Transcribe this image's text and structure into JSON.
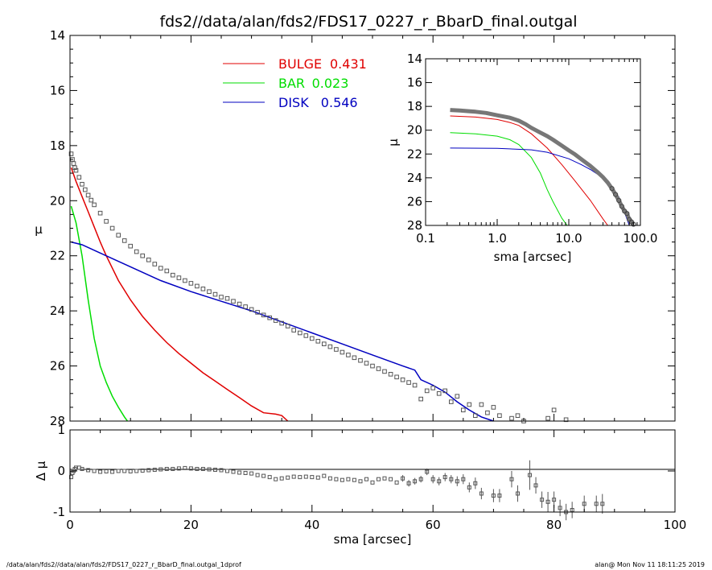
{
  "title": "fds2//data/alan/fds2/FDS17_0227_r_BbarD_final.outgal",
  "footer_left": "/data/alan/fds2//data/alan/fds2/FDS17_0227_r_BbarD_final.outgal_1dprof",
  "footer_right": "alan@  Mon Nov 11 18:11:25 2019",
  "colors": {
    "bulge": "#e00000",
    "bar": "#00dd00",
    "disk": "#0000c0",
    "data": "#555555",
    "axis": "#000000"
  },
  "chart_data": [
    {
      "type": "line",
      "panel": "main",
      "xlim": [
        0,
        100
      ],
      "ylim": [
        28,
        14
      ],
      "ylabel": "μ",
      "xticks": [
        "0",
        "20",
        "40",
        "60",
        "80",
        "100"
      ],
      "yticks": [
        "14",
        "16",
        "18",
        "20",
        "22",
        "24",
        "26",
        "28"
      ],
      "legend": [
        {
          "label": "BULGE",
          "value": "0.431",
          "color": "#e00000"
        },
        {
          "label": "BAR",
          "value": "0.023",
          "color": "#00dd00"
        },
        {
          "label": "DISK",
          "value": "0.546",
          "color": "#0000c0"
        }
      ],
      "legend_position": "top-center",
      "series": [
        {
          "name": "BULGE",
          "x": [
            0.2,
            1,
            2,
            3,
            4,
            5,
            6,
            8,
            10,
            12,
            14,
            16,
            18,
            20,
            22,
            24,
            26,
            28,
            30,
            32,
            34,
            35,
            36
          ],
          "y": [
            18.8,
            19.3,
            19.85,
            20.4,
            20.95,
            21.5,
            22.0,
            22.9,
            23.6,
            24.2,
            24.7,
            25.15,
            25.55,
            25.9,
            26.25,
            26.55,
            26.85,
            27.15,
            27.45,
            27.7,
            27.75,
            27.8,
            28.0
          ]
        },
        {
          "name": "BAR",
          "x": [
            0.2,
            1,
            2,
            3,
            4,
            5,
            6,
            7,
            8,
            9,
            9.5
          ],
          "y": [
            20.2,
            20.8,
            22.0,
            23.6,
            25.0,
            26.0,
            26.6,
            27.1,
            27.5,
            27.85,
            28.0
          ]
        },
        {
          "name": "DISK",
          "x": [
            0.2,
            2,
            5,
            10,
            15,
            20,
            25,
            30,
            35,
            40,
            45,
            50,
            55,
            57,
            58,
            60,
            62,
            64,
            66,
            68,
            70
          ],
          "y": [
            21.5,
            21.6,
            21.9,
            22.4,
            22.9,
            23.3,
            23.65,
            24.0,
            24.4,
            24.8,
            25.2,
            25.6,
            26.0,
            26.15,
            26.5,
            26.7,
            26.95,
            27.3,
            27.6,
            27.85,
            28.0
          ]
        }
      ],
      "data_points": {
        "x": [
          0.2,
          0.4,
          0.6,
          0.8,
          1,
          1.5,
          2,
          2.5,
          3,
          3.5,
          4,
          5,
          6,
          7,
          8,
          9,
          10,
          11,
          12,
          13,
          14,
          15,
          16,
          17,
          18,
          19,
          20,
          21,
          22,
          23,
          24,
          25,
          26,
          27,
          28,
          29,
          30,
          31,
          32,
          33,
          34,
          35,
          36,
          37,
          38,
          39,
          40,
          41,
          42,
          43,
          44,
          45,
          46,
          47,
          48,
          49,
          50,
          51,
          52,
          53,
          54,
          55,
          56,
          57,
          58,
          59,
          60,
          61,
          62,
          63,
          64,
          65,
          66,
          67,
          68,
          69,
          70,
          71,
          72,
          73,
          74,
          75,
          76,
          77,
          78,
          79,
          80,
          81,
          82
        ],
        "y": [
          18.3,
          18.5,
          18.65,
          18.8,
          18.9,
          19.15,
          19.4,
          19.6,
          19.8,
          19.98,
          20.15,
          20.45,
          20.75,
          21.0,
          21.25,
          21.45,
          21.65,
          21.85,
          22.0,
          22.15,
          22.3,
          22.45,
          22.55,
          22.7,
          22.8,
          22.9,
          23.0,
          23.1,
          23.2,
          23.3,
          23.4,
          23.5,
          23.55,
          23.65,
          23.75,
          23.85,
          23.95,
          24.05,
          24.15,
          24.25,
          24.35,
          24.45,
          24.55,
          24.7,
          24.8,
          24.9,
          25.0,
          25.1,
          25.2,
          25.3,
          25.4,
          25.5,
          25.6,
          25.7,
          25.8,
          25.9,
          26.0,
          26.1,
          26.2,
          26.3,
          26.4,
          26.5,
          26.6,
          26.7,
          27.2,
          26.9,
          26.8,
          27.0,
          26.9,
          27.3,
          27.1,
          27.6,
          27.4,
          27.8,
          27.4,
          27.7,
          27.5,
          27.8,
          28.1,
          27.9,
          27.8,
          28.0,
          28.3,
          28.2,
          28.1,
          27.9,
          27.6,
          28.1,
          27.95
        ]
      }
    },
    {
      "type": "scatter",
      "panel": "residual",
      "xlim": [
        0,
        100
      ],
      "ylim": [
        -1,
        1
      ],
      "xlabel": "sma [arcsec]",
      "ylabel": "Δ μ",
      "yticks": [
        "1",
        "0",
        "-1"
      ],
      "zero_line": true,
      "x": [
        0.2,
        0.4,
        0.6,
        0.8,
        1,
        1.5,
        2,
        3,
        4,
        5,
        6,
        7,
        8,
        9,
        10,
        11,
        12,
        13,
        14,
        15,
        16,
        17,
        18,
        19,
        20,
        21,
        22,
        23,
        24,
        25,
        26,
        27,
        28,
        29,
        30,
        31,
        32,
        33,
        34,
        35,
        36,
        37,
        38,
        39,
        40,
        41,
        42,
        43,
        44,
        45,
        46,
        47,
        48,
        49,
        50,
        51,
        52,
        53,
        54,
        55,
        56,
        57,
        58,
        59,
        60,
        61,
        62,
        63,
        64,
        65,
        66,
        67,
        68,
        70,
        71,
        73,
        74,
        76,
        77,
        78,
        79,
        80,
        81,
        82,
        83,
        85,
        87,
        88
      ],
      "y": [
        -0.15,
        -0.05,
        0.0,
        0.05,
        0.08,
        0.08,
        0.05,
        0.02,
        0.0,
        -0.02,
        -0.01,
        -0.02,
        0.0,
        0.0,
        -0.01,
        0.0,
        0.01,
        0.02,
        0.03,
        0.04,
        0.05,
        0.05,
        0.06,
        0.07,
        0.06,
        0.05,
        0.05,
        0.04,
        0.03,
        0.02,
        0.0,
        -0.02,
        -0.04,
        -0.05,
        -0.06,
        -0.1,
        -0.12,
        -0.15,
        -0.2,
        -0.18,
        -0.16,
        -0.14,
        -0.15,
        -0.14,
        -0.15,
        -0.16,
        -0.12,
        -0.18,
        -0.2,
        -0.22,
        -0.2,
        -0.22,
        -0.25,
        -0.2,
        -0.28,
        -0.2,
        -0.18,
        -0.2,
        -0.28,
        -0.18,
        -0.3,
        -0.25,
        -0.2,
        -0.02,
        -0.2,
        -0.25,
        -0.15,
        -0.2,
        -0.25,
        -0.2,
        -0.4,
        -0.3,
        -0.55,
        -0.6,
        -0.6,
        -0.2,
        -0.55,
        -0.1,
        -0.35,
        -0.7,
        -0.75,
        -0.7,
        -0.9,
        -1.0,
        -0.95,
        -0.8,
        -0.8,
        -0.8
      ],
      "err": [
        0.02,
        0.02,
        0.02,
        0.02,
        0.02,
        0.02,
        0.02,
        0.02,
        0.02,
        0.02,
        0.02,
        0.02,
        0.02,
        0.02,
        0.02,
        0.02,
        0.02,
        0.02,
        0.02,
        0.02,
        0.02,
        0.02,
        0.02,
        0.02,
        0.02,
        0.02,
        0.02,
        0.02,
        0.02,
        0.02,
        0.02,
        0.02,
        0.02,
        0.02,
        0.02,
        0.02,
        0.02,
        0.02,
        0.02,
        0.02,
        0.02,
        0.02,
        0.02,
        0.02,
        0.03,
        0.03,
        0.03,
        0.03,
        0.03,
        0.03,
        0.03,
        0.03,
        0.03,
        0.03,
        0.03,
        0.03,
        0.03,
        0.03,
        0.03,
        0.04,
        0.04,
        0.04,
        0.04,
        0.04,
        0.05,
        0.05,
        0.05,
        0.05,
        0.06,
        0.06,
        0.06,
        0.07,
        0.07,
        0.08,
        0.08,
        0.1,
        0.1,
        0.18,
        0.1,
        0.1,
        0.12,
        0.1,
        0.1,
        0.1,
        0.1,
        0.1,
        0.1,
        0.12
      ]
    },
    {
      "type": "line",
      "panel": "inset",
      "xscale": "log",
      "xlim": [
        0.1,
        100
      ],
      "ylim": [
        28,
        14
      ],
      "xlabel": "sma [arcsec]",
      "ylabel": "μ",
      "xticks": [
        "0.1",
        "1.0",
        "10.0",
        "100.0"
      ],
      "yticks": [
        "14",
        "16",
        "18",
        "20",
        "22",
        "24",
        "26",
        "28"
      ],
      "series": [
        {
          "name": "BULGE",
          "x": [
            0.22,
            0.5,
            1,
            1.5,
            2,
            3,
            5,
            8,
            12,
            20,
            30,
            35
          ],
          "y": [
            18.8,
            18.9,
            19.1,
            19.35,
            19.6,
            20.3,
            21.5,
            22.9,
            24.2,
            25.9,
            27.45,
            28.0
          ]
        },
        {
          "name": "BAR",
          "x": [
            0.22,
            0.5,
            1,
            1.5,
            2,
            3,
            4,
            5,
            6,
            8,
            9.5
          ],
          "y": [
            20.2,
            20.3,
            20.5,
            20.8,
            21.2,
            22.3,
            23.6,
            25.0,
            26.0,
            27.4,
            28.0
          ]
        },
        {
          "name": "DISK",
          "x": [
            0.22,
            1,
            3,
            5,
            10,
            15,
            20,
            30,
            50,
            70
          ],
          "y": [
            21.5,
            21.52,
            21.65,
            21.85,
            22.4,
            22.9,
            23.3,
            24.0,
            25.6,
            28.0
          ]
        }
      ],
      "data_points": {
        "x": [
          0.22,
          0.3,
          0.4,
          0.5,
          0.7,
          1,
          1.5,
          2,
          2.5,
          3,
          4,
          5,
          6,
          8,
          10,
          12,
          15,
          20,
          25,
          30,
          35,
          40,
          45,
          50,
          55,
          60,
          65,
          70,
          75,
          80
        ],
        "y": [
          18.3,
          18.35,
          18.4,
          18.45,
          18.55,
          18.75,
          18.95,
          19.2,
          19.5,
          19.8,
          20.2,
          20.5,
          20.8,
          21.3,
          21.7,
          22.0,
          22.45,
          23.0,
          23.5,
          23.95,
          24.4,
          24.9,
          25.4,
          25.9,
          26.4,
          26.8,
          27.0,
          27.5,
          27.7,
          27.9
        ]
      }
    }
  ]
}
